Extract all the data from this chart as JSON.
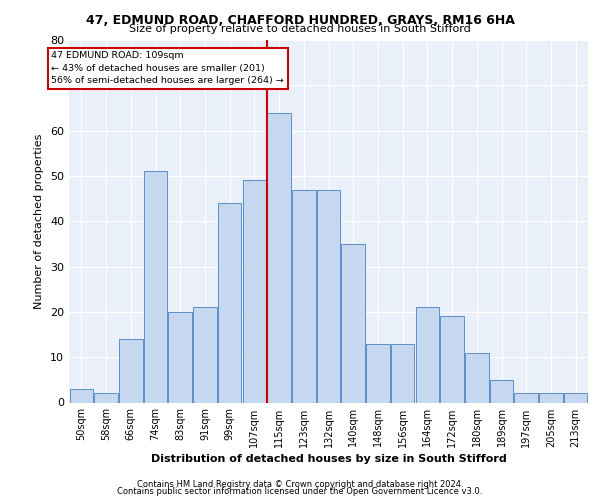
{
  "title1": "47, EDMUND ROAD, CHAFFORD HUNDRED, GRAYS, RM16 6HA",
  "title2": "Size of property relative to detached houses in South Stifford",
  "xlabel": "Distribution of detached houses by size in South Stifford",
  "ylabel": "Number of detached properties",
  "bin_labels": [
    "50sqm",
    "58sqm",
    "66sqm",
    "74sqm",
    "83sqm",
    "91sqm",
    "99sqm",
    "107sqm",
    "115sqm",
    "123sqm",
    "132sqm",
    "140sqm",
    "148sqm",
    "156sqm",
    "164sqm",
    "172sqm",
    "180sqm",
    "189sqm",
    "197sqm",
    "205sqm",
    "213sqm"
  ],
  "bar_heights": [
    3,
    2,
    14,
    51,
    20,
    21,
    44,
    49,
    64,
    47,
    47,
    35,
    13,
    13,
    21,
    19,
    11,
    5,
    2,
    2,
    2
  ],
  "bar_color": "#c5d8f0",
  "bar_edge_color": "#5b8fc7",
  "vline_index": 7.5,
  "annotation_line1": "47 EDMUND ROAD: 109sqm",
  "annotation_line2": "← 43% of detached houses are smaller (201)",
  "annotation_line3": "56% of semi-detached houses are larger (264) →",
  "annotation_box_facecolor": "#ffffff",
  "annotation_box_edgecolor": "#cc0000",
  "vline_color": "#cc0000",
  "ylim": [
    0,
    80
  ],
  "yticks": [
    0,
    10,
    20,
    30,
    40,
    50,
    60,
    70,
    80
  ],
  "footer1": "Contains HM Land Registry data © Crown copyright and database right 2024.",
  "footer2": "Contains public sector information licensed under the Open Government Licence v3.0.",
  "plot_bg_color": "#eaf0f9"
}
